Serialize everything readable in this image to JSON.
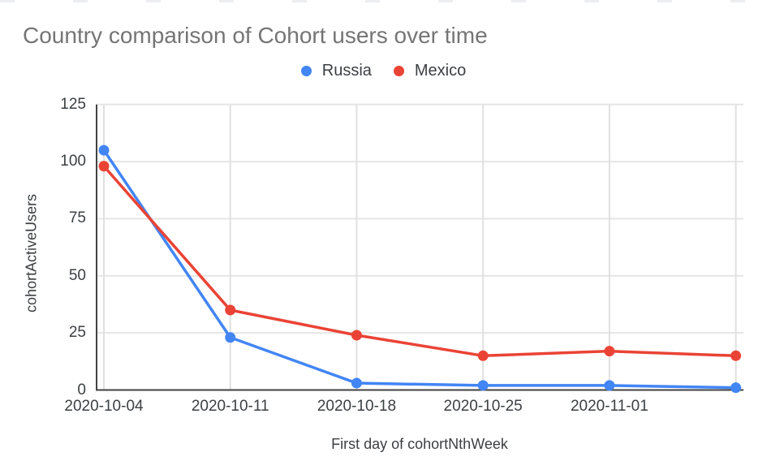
{
  "chart_data": {
    "type": "line",
    "title": "Country comparison of Cohort users over time",
    "xlabel": "First day of cohortNthWeek",
    "ylabel": "cohortActiveUsers",
    "categories": [
      "2020-10-04",
      "2020-10-11",
      "2020-10-18",
      "2020-10-25",
      "2020-11-01",
      ""
    ],
    "series": [
      {
        "name": "Russia",
        "color": "#4285F4",
        "values": [
          105,
          23,
          3,
          2,
          2,
          1
        ]
      },
      {
        "name": "Mexico",
        "color": "#EA4335",
        "values": [
          98,
          35,
          24,
          15,
          17,
          15
        ]
      }
    ],
    "ylim": [
      0,
      125
    ],
    "yticks": [
      0,
      25,
      50,
      75,
      100,
      125
    ],
    "grid": true,
    "legend_position": "top",
    "colors": {
      "title_text": "#757575",
      "axis_text": "#3c4043",
      "axis_line": "#424242",
      "gridline_h": "#e6e6e6",
      "gridline_v": "#e0e0e0",
      "background": "#ffffff"
    }
  }
}
